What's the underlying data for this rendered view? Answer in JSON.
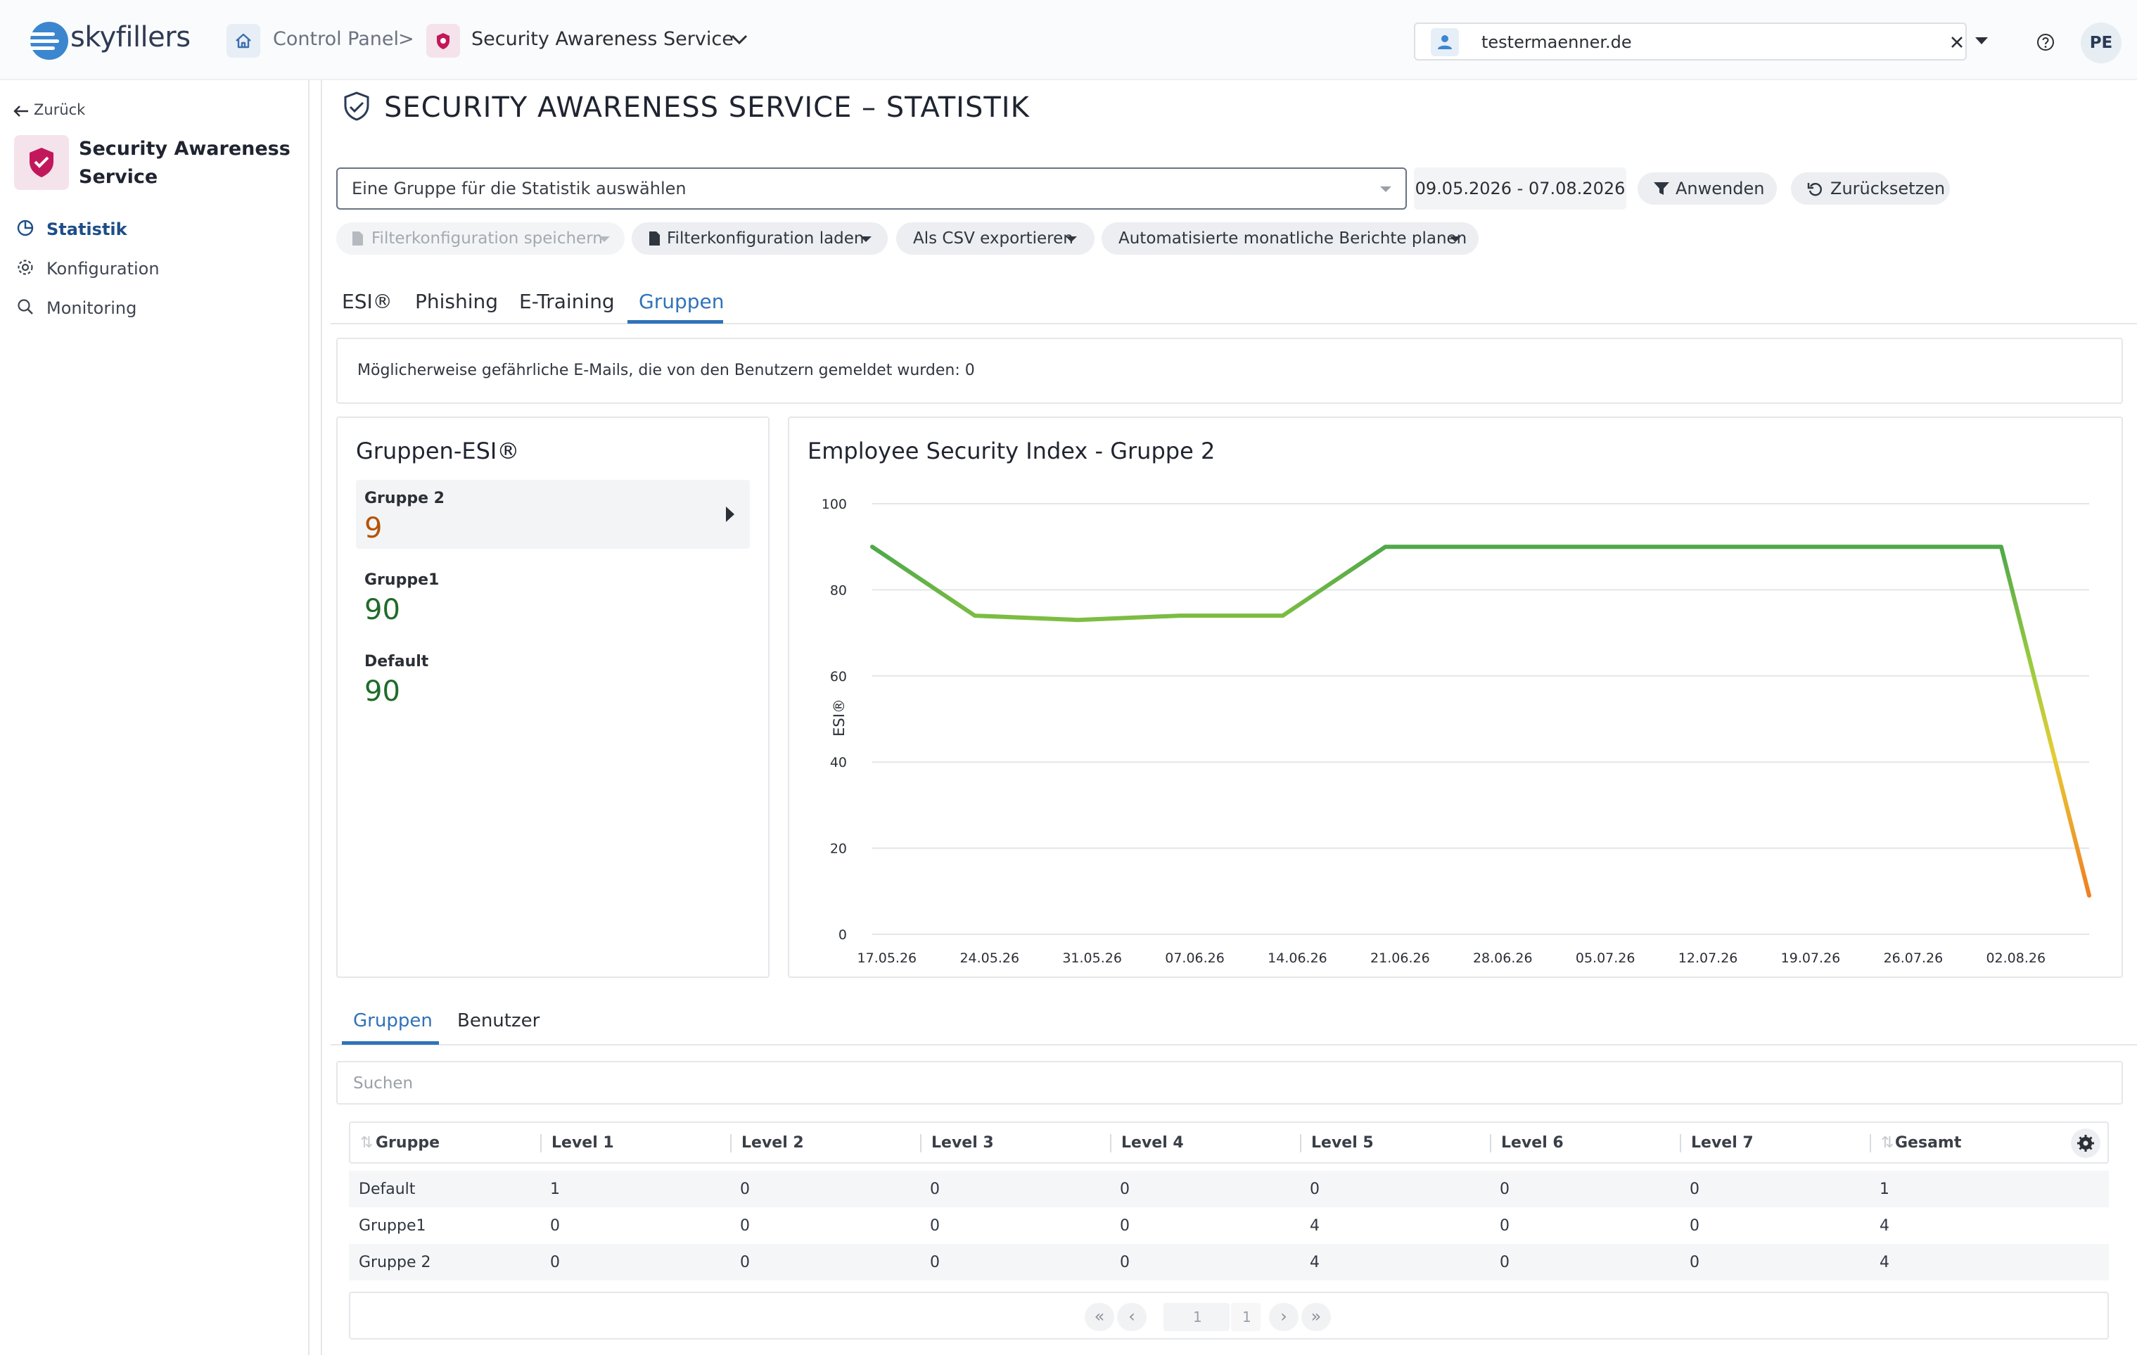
{
  "header": {
    "logo_text": "skyfillers",
    "breadcrumb": [
      {
        "label": "Control Panel"
      },
      {
        "label": "Security Awareness Service"
      }
    ],
    "breadcrumb_separator": ">",
    "tenant": "testermaenner.de",
    "avatar_initials": "PE"
  },
  "sidebar": {
    "back_label": "Zurück",
    "service_title_line1": "Security Awareness",
    "service_title_line2": "Service",
    "items": [
      {
        "label": "Statistik",
        "icon": "chart-pie-icon",
        "active": true
      },
      {
        "label": "Konfiguration",
        "icon": "gear-icon",
        "active": false
      },
      {
        "label": "Monitoring",
        "icon": "magnifier-icon",
        "active": false
      }
    ]
  },
  "main": {
    "title": "SECURITY AWARENESS SERVICE – STATISTIK",
    "group_select_placeholder": "Eine Gruppe für die Statistik auswählen",
    "date_range": "09.05.2026 - 07.08.2026",
    "apply_label": "Anwenden",
    "reset_label": "Zurücksetzen",
    "actions": [
      {
        "label": "Filterkonfiguration speichern",
        "disabled": true
      },
      {
        "label": "Filterkonfiguration laden",
        "disabled": false
      },
      {
        "label": "Als CSV exportieren",
        "disabled": false
      },
      {
        "label": "Automatisierte monatliche Berichte planen",
        "disabled": false
      }
    ],
    "tabs": [
      {
        "label": "ESI®"
      },
      {
        "label": "Phishing"
      },
      {
        "label": "E-Training"
      },
      {
        "label": "Gruppen",
        "active": true
      }
    ],
    "info_text": "Möglicherweise gefährliche E-Mails, die von den Benutzern gemeldet wurden: 0",
    "groups_panel": {
      "title": "Gruppen-ESI®",
      "groups": [
        {
          "name": "Gruppe 2",
          "value": "9",
          "selected": true,
          "color": "#b45309"
        },
        {
          "name": "Gruppe1",
          "value": "90",
          "selected": false,
          "color": "#1f6b2a"
        },
        {
          "name": "Default",
          "value": "90",
          "selected": false,
          "color": "#1f6b2a"
        }
      ]
    },
    "bottom_tabs": [
      {
        "label": "Gruppen",
        "active": true
      },
      {
        "label": "Benutzer"
      }
    ],
    "search_placeholder": "Suchen",
    "table": {
      "columns": [
        "Gruppe",
        "Level 1",
        "Level 2",
        "Level 3",
        "Level 4",
        "Level 5",
        "Level 6",
        "Level 7",
        "Gesamt"
      ],
      "rows": [
        [
          "Default",
          "1",
          "0",
          "0",
          "0",
          "0",
          "0",
          "0",
          "1"
        ],
        [
          "Gruppe1",
          "0",
          "0",
          "0",
          "0",
          "4",
          "0",
          "0",
          "4"
        ],
        [
          "Gruppe 2",
          "0",
          "0",
          "0",
          "0",
          "4",
          "0",
          "0",
          "4"
        ]
      ]
    },
    "pager": {
      "current_page": "1",
      "total_pages": "1"
    }
  },
  "chart_data": {
    "type": "line",
    "title": "Employee Security Index - Gruppe 2",
    "ylabel": "ESI®",
    "xlabel": "",
    "ylim": [
      0,
      100
    ],
    "yticks": [
      0,
      20,
      40,
      60,
      80,
      100
    ],
    "x_tick_labels": [
      "17.05.26",
      "24.05.26",
      "31.05.26",
      "07.06.26",
      "14.06.26",
      "21.06.26",
      "28.06.26",
      "05.07.26",
      "12.07.26",
      "19.07.26",
      "26.07.26",
      "02.08.26"
    ],
    "x_domain": [
      "2026-05-16",
      "2026-08-07"
    ],
    "series": [
      {
        "x": [
          "2026-05-16",
          "2026-05-23",
          "2026-05-30",
          "2026-06-06",
          "2026-06-13",
          "2026-06-20",
          "2026-06-27",
          "2026-07-04",
          "2026-07-11",
          "2026-07-18",
          "2026-07-25",
          "2026-08-01",
          "2026-08-07"
        ],
        "values": [
          90,
          74,
          73,
          74,
          74,
          90,
          90,
          90,
          90,
          90,
          90,
          90,
          9
        ]
      }
    ],
    "grid": true,
    "legend": "none",
    "colors": {
      "high": "#5fad46",
      "mid": "#e6c935",
      "low": "#f08a24"
    }
  }
}
